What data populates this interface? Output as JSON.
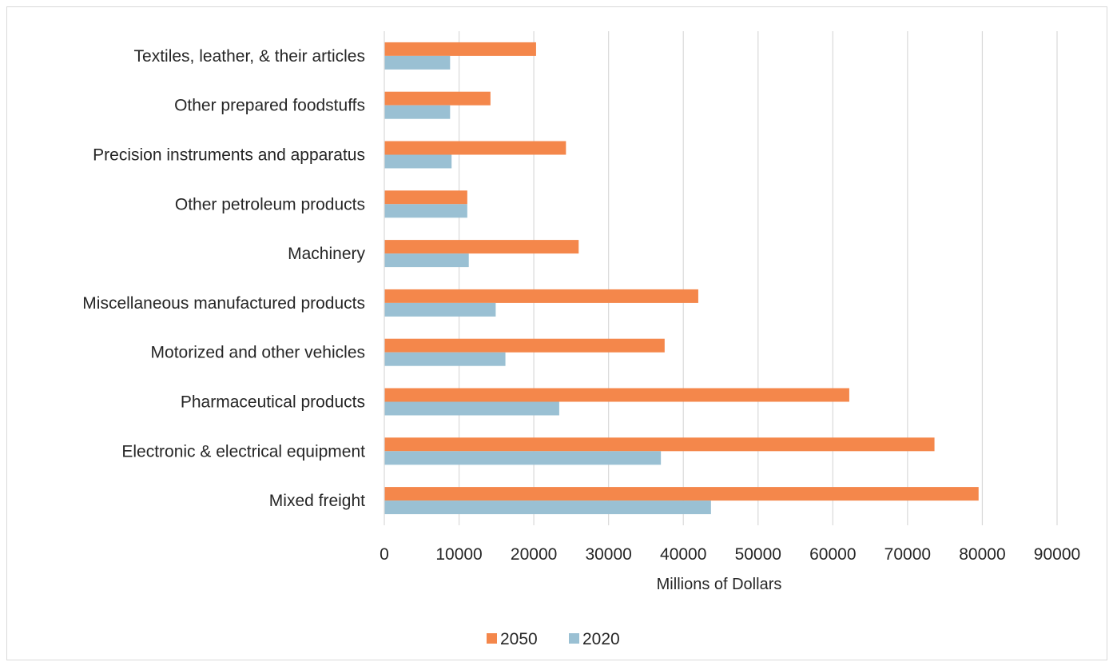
{
  "chart_data": {
    "type": "bar",
    "orientation": "horizontal",
    "title": "",
    "xlabel": "Millions of Dollars",
    "ylabel": "",
    "xlim": [
      0,
      90000
    ],
    "x_ticks": [
      "0",
      "10000",
      "20000",
      "30000",
      "40000",
      "50000",
      "60000",
      "70000",
      "80000",
      "90000"
    ],
    "grid": "vertical",
    "legend_position": "bottom",
    "categories": [
      "Textiles, leather, & their articles",
      "Other prepared foodstuffs",
      "Precision instruments and apparatus",
      "Other petroleum products",
      "Machinery",
      "Miscellaneous manufactured products",
      "Motorized and other vehicles",
      "Pharmaceutical products",
      "Electronic & electrical equipment",
      "Mixed freight"
    ],
    "series": [
      {
        "name": "2050",
        "color": "#f4874b",
        "values": [
          20300,
          14200,
          24300,
          11100,
          26000,
          42000,
          37500,
          62200,
          73600,
          79500
        ]
      },
      {
        "name": "2020",
        "color": "#9ac0d3",
        "values": [
          8800,
          8800,
          9000,
          11100,
          11300,
          14900,
          16200,
          23400,
          37000,
          43700
        ]
      }
    ],
    "legend": [
      "2050",
      "2020"
    ]
  }
}
